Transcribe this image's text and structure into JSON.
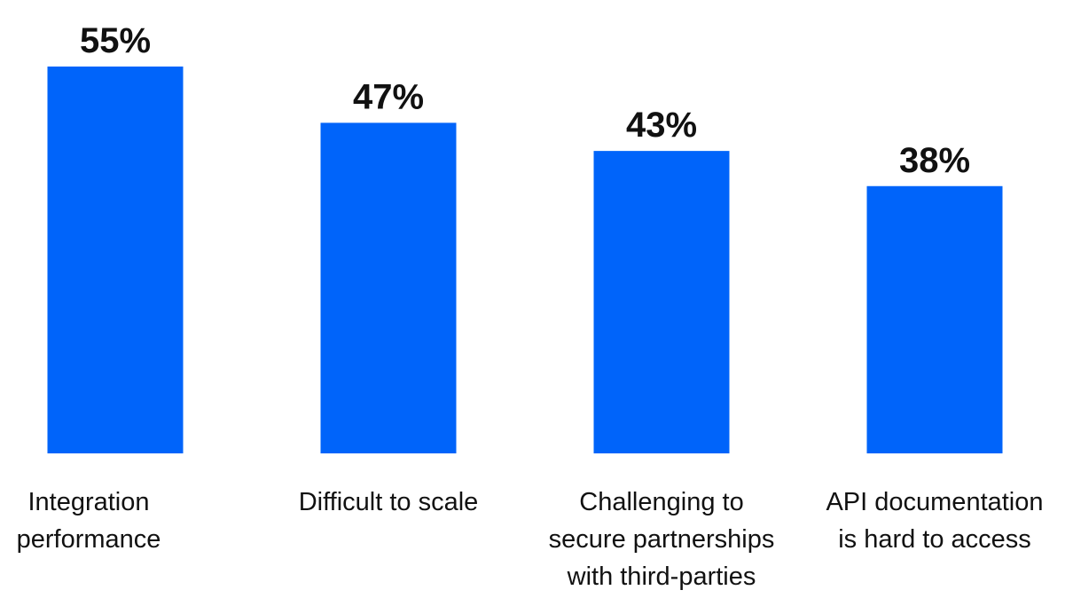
{
  "chart_data": {
    "type": "bar",
    "categories": [
      [
        "Integration",
        "performance"
      ],
      [
        "Difficult to scale"
      ],
      [
        "Challenging to",
        "secure partnerships",
        "with third-parties"
      ],
      [
        "API documentation",
        "is hard to access"
      ]
    ],
    "values": [
      55,
      47,
      43,
      38
    ],
    "value_labels": [
      "55%",
      "47%",
      "43%",
      "38%"
    ],
    "title": "",
    "xlabel": "",
    "ylabel": "",
    "ylim": [
      0,
      55
    ],
    "grid": false,
    "legend": "none",
    "bar_color": "#0064FA",
    "text_color": "#111111"
  }
}
